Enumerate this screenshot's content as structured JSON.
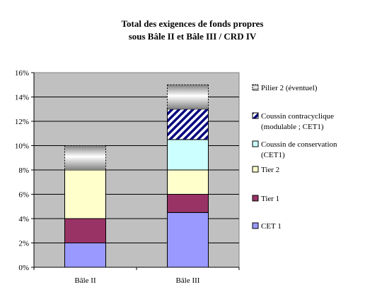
{
  "chart_data": {
    "type": "bar",
    "stacked": true,
    "title": "Total des exigences de fonds propres",
    "subtitle": "sous Bâle II et Bâle III / CRD IV",
    "xlabel": "",
    "ylabel": "",
    "categories": [
      "Bâle II",
      "Bâle III"
    ],
    "ylim": [
      0,
      16
    ],
    "yticks": [
      "0%",
      "2%",
      "4%",
      "6%",
      "8%",
      "10%",
      "12%",
      "14%",
      "16%"
    ],
    "grid": true,
    "legend_position": "right",
    "plot_background": "#c0c0c0",
    "series": [
      {
        "name": "CET 1",
        "values": [
          2,
          4.5
        ],
        "color": "#9999ff",
        "pattern": "solid"
      },
      {
        "name": "Tier 1",
        "values": [
          2,
          1.5
        ],
        "color": "#993366",
        "pattern": "solid"
      },
      {
        "name": "Tier 2",
        "values": [
          4,
          2
        ],
        "color": "#ffffcc",
        "pattern": "solid"
      },
      {
        "name": "Coussin de conservation (CET1)",
        "values": [
          0,
          2.5
        ],
        "color": "#ccffff",
        "pattern": "solid"
      },
      {
        "name": "Coussin contracyclique (modulable ; CET1)",
        "values": [
          0,
          2.5
        ],
        "color": "#000080",
        "pattern": "diagonal-stripes"
      },
      {
        "name": "Pilier 2 (éventuel)",
        "values": [
          2,
          2
        ],
        "color": "#999999",
        "pattern": "gradient-dashed"
      }
    ],
    "legend_lines": [
      [
        "Pilier 2 (éventuel)"
      ],
      [
        "Coussin contracyclique",
        "(modulable ; CET1)"
      ],
      [
        "Coussin de conservation",
        "(CET1)"
      ],
      [
        "Tier 2"
      ],
      [
        "Tier 1"
      ],
      [
        "CET 1"
      ]
    ]
  }
}
